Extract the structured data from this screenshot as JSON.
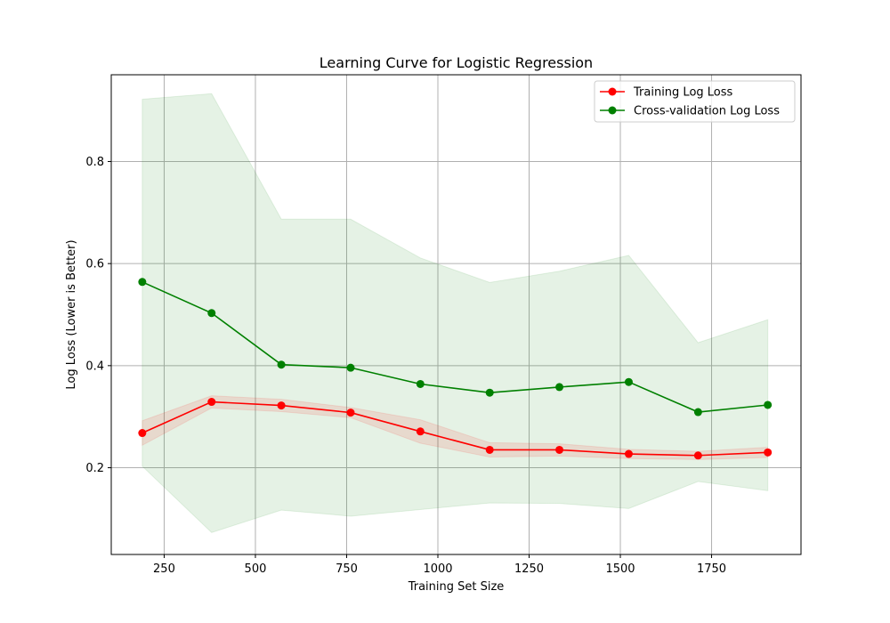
{
  "chart_data": {
    "type": "line",
    "title": "Learning Curve for Logistic Regression",
    "xlabel": "Training Set Size",
    "ylabel": "Log Loss (Lower is Better)",
    "xlim": [
      105,
      1995
    ],
    "ylim": [
      0.03,
      0.97
    ],
    "xticks": [
      250,
      500,
      750,
      1000,
      1250,
      1500,
      1750
    ],
    "yticks": [
      0.2,
      0.4,
      0.6,
      0.8
    ],
    "xtick_labels": [
      "250",
      "500",
      "750",
      "1000",
      "1250",
      "1500",
      "1750"
    ],
    "ytick_labels": [
      "0.2",
      "0.4",
      "0.6",
      "0.8"
    ],
    "grid": true,
    "legend_position": "top-right",
    "x": [
      190,
      380,
      571,
      761,
      952,
      1142,
      1333,
      1523,
      1713,
      1904
    ],
    "series": [
      {
        "name": "Training Log Loss",
        "color": "#ff0000",
        "band_color": "#ff0000",
        "values": [
          0.268,
          0.329,
          0.322,
          0.308,
          0.271,
          0.235,
          0.235,
          0.227,
          0.224,
          0.23
        ],
        "upper": [
          0.292,
          0.341,
          0.334,
          0.318,
          0.294,
          0.249,
          0.247,
          0.236,
          0.232,
          0.24
        ],
        "lower": [
          0.244,
          0.317,
          0.31,
          0.298,
          0.248,
          0.221,
          0.223,
          0.218,
          0.216,
          0.22
        ]
      },
      {
        "name": "Cross-validation Log Loss",
        "color": "#008000",
        "band_color": "#008000",
        "values": [
          0.564,
          0.503,
          0.402,
          0.396,
          0.364,
          0.347,
          0.358,
          0.368,
          0.309,
          0.323
        ],
        "upper": [
          0.922,
          0.933,
          0.687,
          0.687,
          0.611,
          0.563,
          0.585,
          0.616,
          0.445,
          0.49
        ],
        "lower": [
          0.203,
          0.073,
          0.117,
          0.105,
          0.118,
          0.131,
          0.13,
          0.12,
          0.173,
          0.155
        ]
      }
    ]
  }
}
